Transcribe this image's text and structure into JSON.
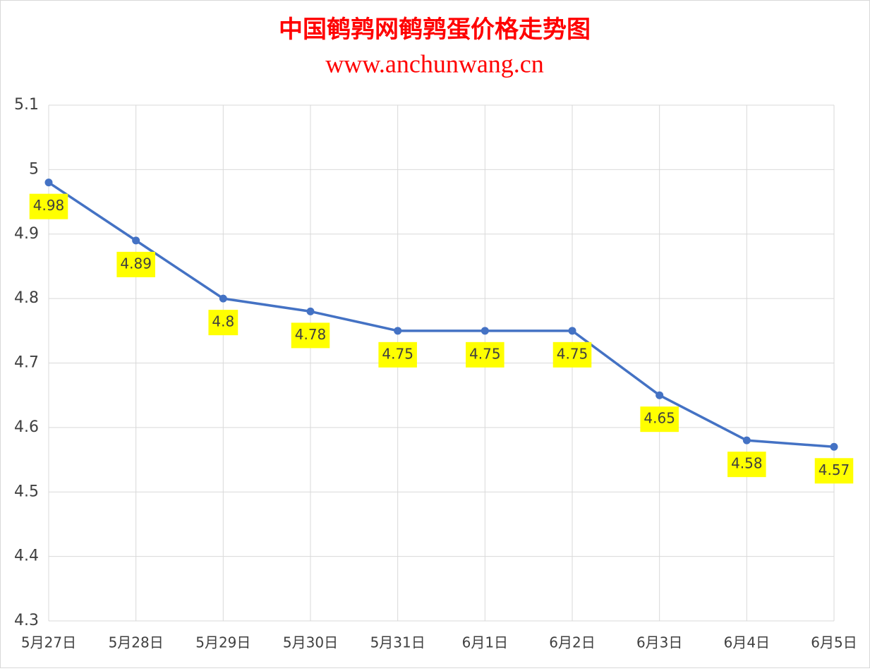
{
  "chart_data": {
    "type": "line",
    "title": "中国鹌鹑网鹌鹑蛋价格走势图",
    "subtitle": "www.anchunwang.cn",
    "categories": [
      "5月27日",
      "5月28日",
      "5月29日",
      "5月30日",
      "5月31日",
      "6月1日",
      "6月2日",
      "6月3日",
      "6月4日",
      "6月5日"
    ],
    "values": [
      4.98,
      4.89,
      4.8,
      4.78,
      4.75,
      4.75,
      4.75,
      4.65,
      4.58,
      4.57
    ],
    "color": "#4472c4",
    "label_color": "#ffff00",
    "ylim": [
      4.3,
      5.1
    ],
    "yticks": [
      4.3,
      4.4,
      4.5,
      4.6,
      4.7,
      4.8,
      4.9,
      5,
      5.1
    ],
    "grid": true
  }
}
